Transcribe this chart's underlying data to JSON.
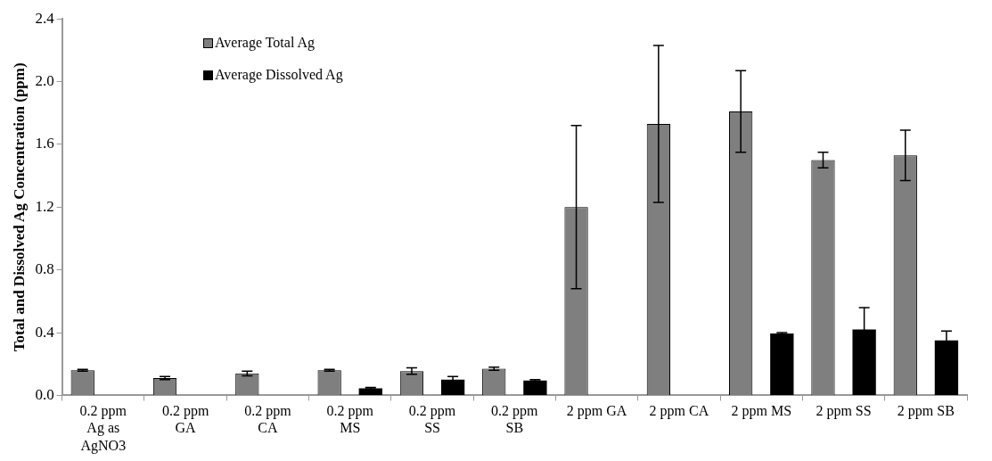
{
  "chart_data": {
    "type": "bar",
    "ylabel": "Total and Dissolved Ag Concentration (ppm)",
    "categories": [
      "0.2 ppm Ag as AgNO3",
      "0.2 ppm GA",
      "0.2 ppm CA",
      "0.2 ppm MS",
      "0.2 ppm SS",
      "0.2 ppm SB",
      "2 ppm GA",
      "2 ppm CA",
      "2 ppm MS",
      "2 ppm SS",
      "2 ppm SB"
    ],
    "series": [
      {
        "name": "Average Total Ag",
        "color": "#7f7f7f",
        "values": [
          0.16,
          0.11,
          0.14,
          0.16,
          0.155,
          0.17,
          1.2,
          1.73,
          1.81,
          1.5,
          1.53
        ],
        "errors": [
          0.005,
          0.01,
          0.015,
          0.005,
          0.02,
          0.01,
          0.52,
          0.5,
          0.26,
          0.05,
          0.16
        ]
      },
      {
        "name": "Average Dissolved Ag",
        "color": "#000000",
        "values": [
          null,
          null,
          null,
          0.045,
          0.1,
          0.095,
          null,
          null,
          0.395,
          0.42,
          0.35
        ],
        "errors": [
          null,
          null,
          null,
          0.005,
          0.02,
          0.005,
          null,
          null,
          0.005,
          0.14,
          0.06
        ]
      }
    ],
    "ylim": [
      0,
      2.4
    ],
    "yticks": [
      {
        "value": 0,
        "label": "0.0"
      },
      {
        "value": 0.4,
        "label": "0.4"
      },
      {
        "value": 0.8,
        "label": "0.8"
      },
      {
        "value": 1.2,
        "label": "1.2"
      },
      {
        "value": 1.6,
        "label": "1.6"
      },
      {
        "value": 2.0,
        "label": "2.0"
      },
      {
        "value": 2.4,
        "label": "2.4"
      }
    ],
    "grid": false,
    "legend": "top left"
  }
}
